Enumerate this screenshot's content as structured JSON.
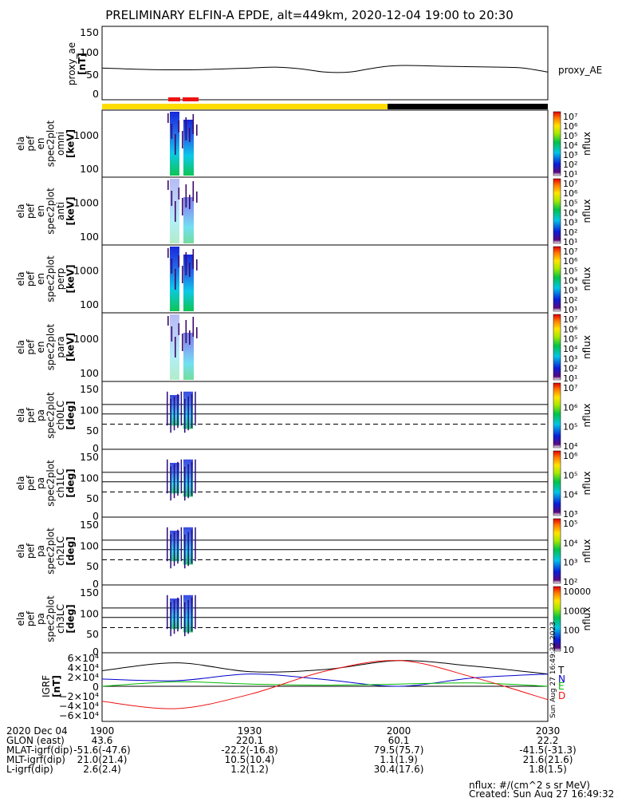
{
  "title": "PRELIMINARY ELFIN-A EPDE, alt=449km, 2020-12-04 19:00 to 20:30",
  "colors": {
    "yellow": "#ffdd00",
    "black": "#000000",
    "red": "#ee1111",
    "green": "#00bb00",
    "blue": "#0000cc"
  },
  "top_panel": {
    "ylabel_lines": [
      "proxy_ae",
      "[nT]"
    ],
    "yticks": [
      "150",
      "100",
      "50",
      "0"
    ],
    "legend": "proxy_AE"
  },
  "sci_zones": [
    "19:25:30-19:27:20",
    "19:28:00-19:31:00"
  ],
  "panels": [
    {
      "label": [
        "ela",
        "pef",
        "en",
        "spec2plot",
        "omni",
        "[keV]"
      ],
      "yticks": [
        "1000",
        "100"
      ],
      "cbar": [
        "10⁷",
        "10⁶",
        "10⁵",
        "10⁴",
        "10³",
        "10²",
        "10¹"
      ],
      "cbar_label": "nflux"
    },
    {
      "label": [
        "ela",
        "pef",
        "en",
        "spec2plot",
        "anti",
        "[keV]"
      ],
      "yticks": [
        "1000",
        "100"
      ],
      "cbar": [
        "10⁷",
        "10⁶",
        "10⁵",
        "10⁴",
        "10³",
        "10²",
        "10¹"
      ],
      "cbar_label": "nflux"
    },
    {
      "label": [
        "ela",
        "pef",
        "en",
        "spec2plot",
        "perp",
        "[keV]"
      ],
      "yticks": [
        "1000",
        "100"
      ],
      "cbar": [
        "10⁷",
        "10⁶",
        "10⁵",
        "10⁴",
        "10³",
        "10²",
        "10¹"
      ],
      "cbar_label": "nflux"
    },
    {
      "label": [
        "ela",
        "pef",
        "en",
        "spec2plot",
        "para",
        "[keV]"
      ],
      "yticks": [
        "1000",
        "100"
      ],
      "cbar": [
        "10⁷",
        "10⁶",
        "10⁵",
        "10⁴",
        "10³",
        "10²",
        "10¹"
      ],
      "cbar_label": "nflux"
    },
    {
      "label": [
        "ela",
        "pef",
        "pa",
        "spec2plot",
        "ch0LC",
        "[deg]"
      ],
      "yticks": [
        "150",
        "100",
        "50",
        "0"
      ],
      "cbar": [
        "10⁷",
        "10⁶",
        "10⁵",
        "10⁴"
      ],
      "cbar_label": "nflux"
    },
    {
      "label": [
        "ela",
        "pef",
        "pa",
        "spec2plot",
        "ch1LC",
        "[deg]"
      ],
      "yticks": [
        "150",
        "100",
        "50",
        "0"
      ],
      "cbar": [
        "10⁶",
        "10⁵",
        "10⁴",
        "10³"
      ],
      "cbar_label": "nflux"
    },
    {
      "label": [
        "ela",
        "pef",
        "pa",
        "spec2plot",
        "ch2LC",
        "[deg]"
      ],
      "yticks": [
        "150",
        "100",
        "50",
        "0"
      ],
      "cbar": [
        "10⁵",
        "10⁴",
        "10³",
        "10²"
      ],
      "cbar_label": "nflux"
    },
    {
      "label": [
        "ela",
        "pef",
        "pa",
        "spec2plot",
        "ch3LC",
        "[deg]"
      ],
      "yticks": [
        "150",
        "100",
        "50",
        "0"
      ],
      "cbar": [
        "10000",
        "1000",
        "100",
        "10"
      ],
      "cbar_label": "nflux"
    }
  ],
  "igrf": {
    "ylabel_lines": [
      "IGRF",
      "[nT]"
    ],
    "yticks": [
      "6×10⁴",
      "4×10⁴",
      "2×10⁴",
      "0",
      "−2×10⁴",
      "−4×10⁴",
      "−6×10⁴"
    ],
    "legend": [
      "T",
      "N",
      "E",
      "D"
    ],
    "created_side": "Sun Aug 27 16:49:32 2023"
  },
  "chart_data": {
    "type": "line",
    "title": "PRELIMINARY ELFIN-A EPDE, alt=449km, 2020-12-04 19:00 to 20:30",
    "x_range": [
      "19:00",
      "20:30"
    ],
    "proxy_ae": {
      "ylim": [
        0,
        150
      ],
      "x": [
        "19:00",
        "19:10",
        "19:20",
        "19:30",
        "19:35",
        "19:40",
        "19:45",
        "19:50",
        "19:55",
        "20:00",
        "20:10",
        "20:20",
        "20:25",
        "20:30"
      ],
      "y": [
        62,
        58,
        58,
        62,
        64,
        60,
        52,
        52,
        62,
        68,
        66,
        64,
        62,
        52
      ]
    },
    "igrf": {
      "ylim": [
        -60000,
        60000
      ],
      "series": [
        {
          "name": "T",
          "x": [
            "19:00",
            "19:15",
            "19:30",
            "19:45",
            "20:00",
            "20:15",
            "20:30"
          ],
          "y": [
            28000,
            42000,
            26000,
            30000,
            46000,
            36000,
            22000
          ]
        },
        {
          "name": "N",
          "x": [
            "19:00",
            "19:15",
            "19:30",
            "19:45",
            "20:00",
            "20:15",
            "20:30"
          ],
          "y": [
            13000,
            10000,
            22000,
            12000,
            0,
            15000,
            22000
          ]
        },
        {
          "name": "E",
          "x": [
            "19:00",
            "19:15",
            "19:30",
            "19:45",
            "20:00",
            "20:15",
            "20:30"
          ],
          "y": [
            0,
            8000,
            4000,
            2000,
            4000,
            6000,
            0
          ]
        },
        {
          "name": "D",
          "x": [
            "19:00",
            "19:15",
            "19:30",
            "19:45",
            "20:00",
            "20:15",
            "20:30"
          ],
          "y": [
            -27000,
            -40000,
            -14000,
            27000,
            46000,
            16000,
            -24000
          ]
        }
      ]
    }
  },
  "footer": {
    "rows": [
      {
        "label": "2020 Dec 04",
        "values": [
          "1900",
          "1930",
          "2000",
          "2030"
        ]
      },
      {
        "label": "GLON (east)",
        "values": [
          "43.6",
          "220.1",
          "60.1",
          "22.2"
        ]
      },
      {
        "label": "MLAT-igrf(dip)",
        "values": [
          "-51.6(-47.6)",
          "-22.2(-16.8)",
          "79.5(75.7)",
          "-41.5(-31.3)"
        ]
      },
      {
        "label": "MLT-igrf(dip)",
        "values": [
          "21.0(21.4)",
          "10.5(10.4)",
          "1.1(1.9)",
          "21.6(21.6)"
        ]
      },
      {
        "label": "L-igrf(dip)",
        "values": [
          "2.6(2.4)",
          "1.2(1.2)",
          "30.4(17.6)",
          "1.8(1.5)"
        ]
      }
    ],
    "nflux_units": "nflux: #/(cm^2 s sr MeV)",
    "created": "Created: Sun Aug 27 16:49:32 2023"
  }
}
